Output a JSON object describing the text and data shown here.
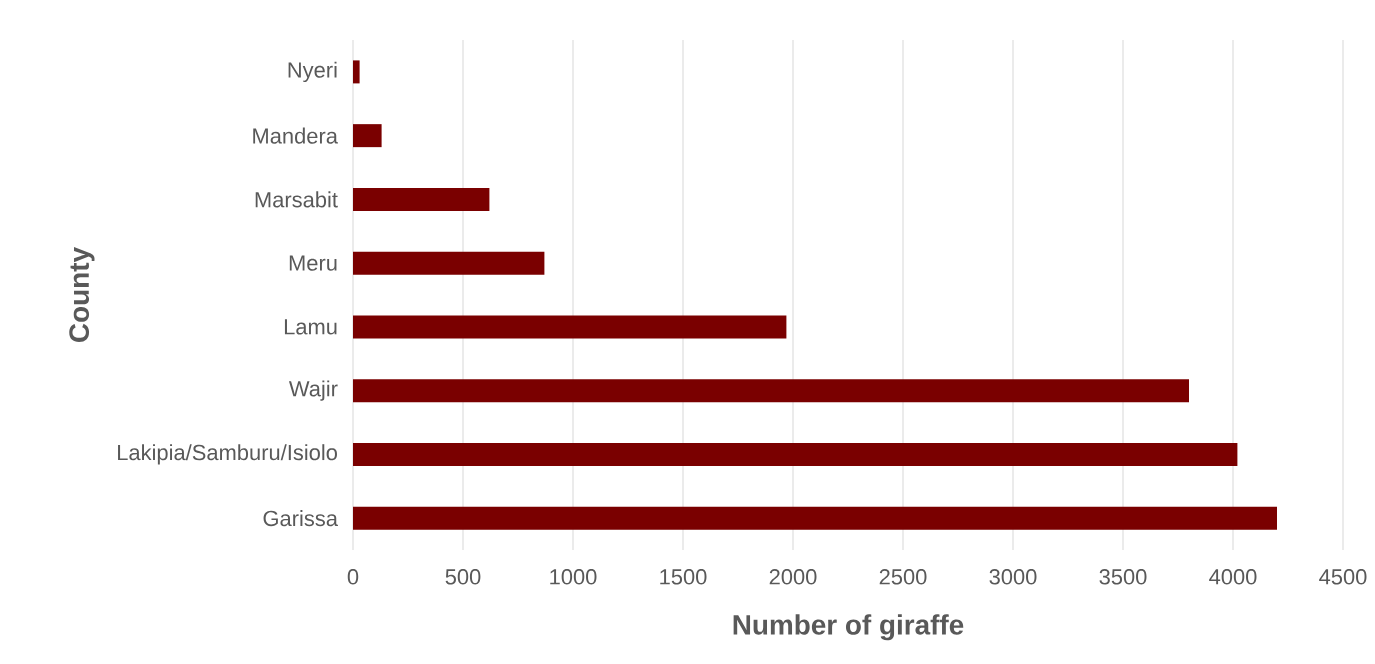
{
  "chart_data": {
    "type": "bar",
    "orientation": "horizontal",
    "xlabel": "Number of giraffe",
    "ylabel": "County",
    "categories": [
      "Nyeri",
      "Mandera",
      "Marsabit",
      "Meru",
      "Lamu",
      "Wajir",
      "Lakipia/Samburu/Isiolo",
      "Garissa"
    ],
    "values": [
      30,
      130,
      620,
      870,
      1970,
      3800,
      4020,
      4200
    ],
    "color": "#7a0000",
    "xlim": [
      0,
      4500
    ],
    "xticks": [
      0,
      500,
      1000,
      1500,
      2000,
      2500,
      3000,
      3500,
      4000,
      4500
    ],
    "grid": "x"
  }
}
